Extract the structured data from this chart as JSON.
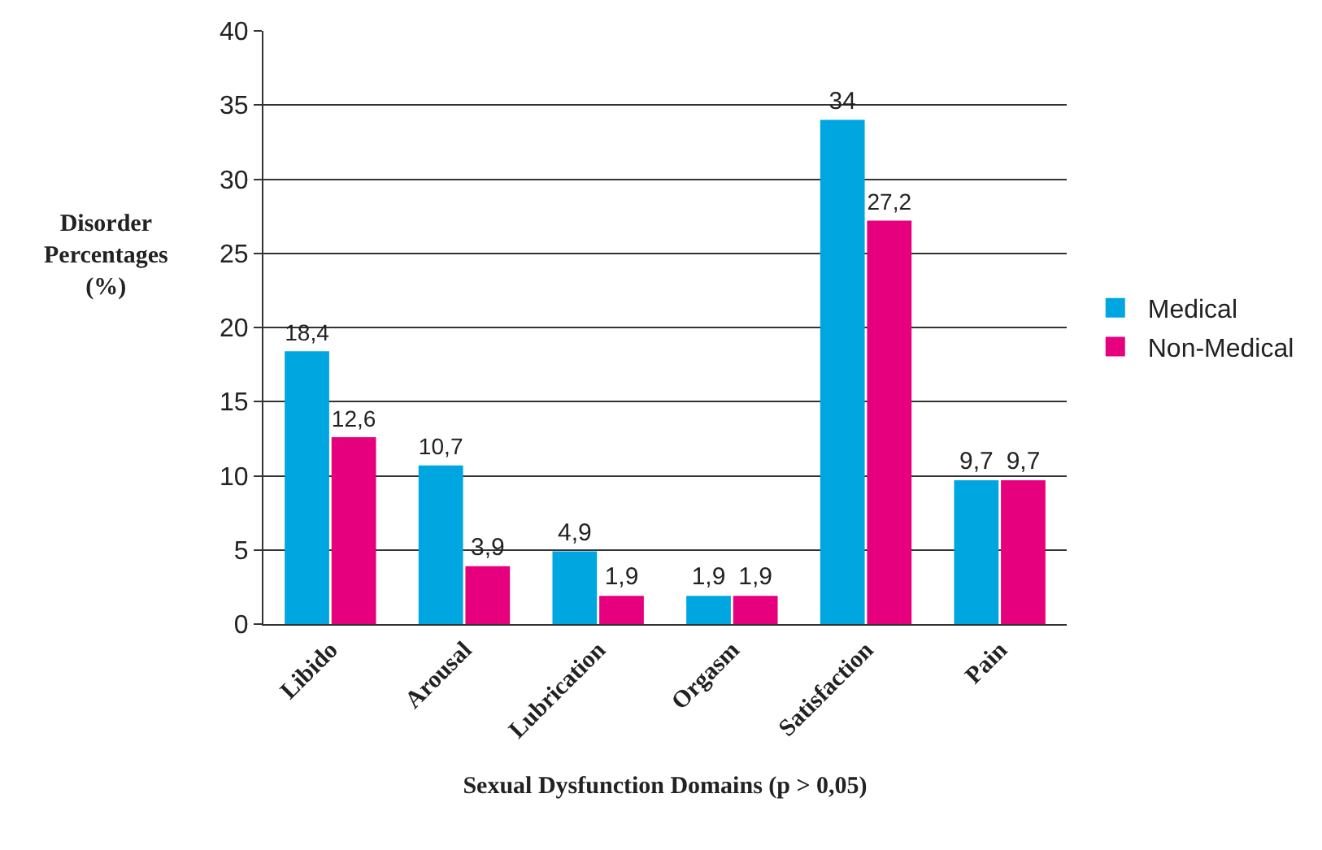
{
  "chart_data": {
    "type": "bar",
    "xlabel": "Sexual Dysfunction Domains (p > 0,05)",
    "ylabel": "Disorder\nPercentages\n(%)",
    "categories": [
      "Libido",
      "Arousal",
      "Lubrication",
      "Orgasm",
      "Satisfaction",
      "Pain"
    ],
    "series": [
      {
        "name": "Medical",
        "color": "#00a6e0",
        "values": [
          18.4,
          10.7,
          4.9,
          1.9,
          34,
          9.7
        ],
        "value_labels": [
          "18,4",
          "10,7",
          "4,9",
          "1,9",
          "34",
          "9,7"
        ]
      },
      {
        "name": "Non-Medical",
        "color": "#e6007e",
        "values": [
          12.6,
          3.9,
          1.9,
          1.9,
          27.2,
          9.7
        ],
        "value_labels": [
          "12,6",
          "3,9",
          "1,9",
          "1,9",
          "27,2",
          "9,7"
        ]
      }
    ],
    "ylim": [
      0,
      40
    ],
    "yticks": [
      0,
      5,
      10,
      15,
      20,
      25,
      30,
      35,
      40
    ],
    "grid": "y",
    "legend": "right"
  }
}
